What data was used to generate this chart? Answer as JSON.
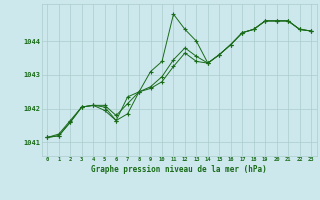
{
  "title": "Graphe pression niveau de la mer (hPa)",
  "bg_color": "#cce8ec",
  "grid_color": "#aacccc",
  "line_color": "#1a6b1a",
  "x_ticks": [
    0,
    1,
    2,
    3,
    4,
    5,
    6,
    7,
    8,
    9,
    10,
    11,
    12,
    13,
    14,
    15,
    16,
    17,
    18,
    19,
    20,
    21,
    22,
    23
  ],
  "y_ticks": [
    1041,
    1042,
    1043,
    1044
  ],
  "ylim": [
    1040.6,
    1045.1
  ],
  "xlim": [
    -0.5,
    23.5
  ],
  "line1_y": [
    1041.15,
    1041.2,
    1041.6,
    1042.05,
    1042.1,
    1041.95,
    1041.65,
    1041.85,
    1042.5,
    1043.1,
    1043.4,
    1044.8,
    1044.35,
    1044.0,
    1043.35,
    1043.6,
    1043.9,
    1044.25,
    1044.35,
    1044.6,
    1044.6,
    1044.6,
    1044.35,
    1044.3
  ],
  "line2_y": [
    1041.15,
    1041.2,
    1041.6,
    1042.05,
    1042.1,
    1042.05,
    1041.65,
    1042.35,
    1042.5,
    1042.6,
    1042.8,
    1043.25,
    1043.65,
    1043.4,
    1043.35,
    1043.6,
    1043.9,
    1044.25,
    1044.35,
    1044.6,
    1044.6,
    1044.6,
    1044.35,
    1044.3
  ],
  "line3_y": [
    1041.15,
    1041.25,
    1041.65,
    1042.05,
    1042.1,
    1042.1,
    1041.8,
    1042.15,
    1042.5,
    1042.65,
    1042.95,
    1043.45,
    1043.8,
    1043.55,
    1043.35,
    1043.6,
    1043.9,
    1044.25,
    1044.35,
    1044.6,
    1044.6,
    1044.6,
    1044.35,
    1044.3
  ]
}
